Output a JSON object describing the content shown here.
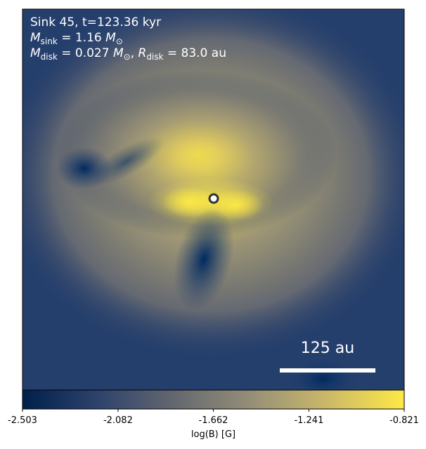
{
  "chart_data": {
    "type": "colormap",
    "annotations": [
      [
        {
          "text": "Sink 45, t=123.36 kyr"
        }
      ],
      [
        {
          "italic": "M"
        },
        {
          "sub": "sink"
        },
        {
          "text": " = 1.16 "
        },
        {
          "italic": "M"
        },
        {
          "sub": "⊙"
        }
      ],
      [
        {
          "italic": "M"
        },
        {
          "sub": "disk"
        },
        {
          "text": " = 0.027 "
        },
        {
          "italic": "M"
        },
        {
          "sub": "⊙"
        },
        {
          "text": ", "
        },
        {
          "italic": "R"
        },
        {
          "sub": "disk"
        },
        {
          "text": " = 83.0 au"
        }
      ]
    ],
    "scale_bar_label": "125 au",
    "colorbar": {
      "label": "log(B) [G]",
      "xlim": [
        -2.503,
        -0.821
      ],
      "xticks": [
        -2.503,
        -2.082,
        -1.662,
        -1.241,
        -0.821
      ],
      "colors": [
        "#00204c",
        "#2e436c",
        "#656870",
        "#958f78",
        "#cbb969",
        "#fde945"
      ]
    }
  }
}
